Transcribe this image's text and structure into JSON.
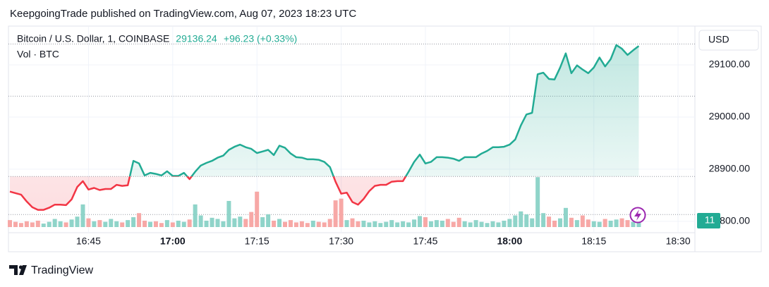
{
  "header": "KeepgoingTrade published on TradingView.com, Aug 07, 2023 18:23 UTC",
  "footer": "TradingView",
  "chart_data": {
    "type": "baseline",
    "symbol": "Bitcoin / U.S. Dollar, 1, COINBASE",
    "last_price": 29136.24,
    "change": "+96.23 (+0.33%)",
    "volume_label": "Vol · BTC",
    "currency": "USD",
    "x": [
      "16:31",
      "16:32",
      "16:33",
      "16:34",
      "16:35",
      "16:36",
      "16:37",
      "16:38",
      "16:39",
      "16:40",
      "16:41",
      "16:42",
      "16:43",
      "16:44",
      "16:45",
      "16:46",
      "16:47",
      "16:48",
      "16:49",
      "16:50",
      "16:51",
      "16:52",
      "16:53",
      "16:54",
      "16:55",
      "16:56",
      "16:57",
      "16:58",
      "16:59",
      "17:00",
      "17:01",
      "17:02",
      "17:03",
      "17:04",
      "17:05",
      "17:06",
      "17:07",
      "17:08",
      "17:09",
      "17:10",
      "17:11",
      "17:12",
      "17:13",
      "17:14",
      "17:15",
      "17:16",
      "17:17",
      "17:18",
      "17:19",
      "17:20",
      "17:21",
      "17:22",
      "17:23",
      "17:24",
      "17:25",
      "17:26",
      "17:27",
      "17:28",
      "17:29",
      "17:30",
      "17:31",
      "17:32",
      "17:33",
      "17:34",
      "17:35",
      "17:36",
      "17:37",
      "17:38",
      "17:39",
      "17:40",
      "17:41",
      "17:42",
      "17:43",
      "17:44",
      "17:45",
      "17:46",
      "17:47",
      "17:48",
      "17:49",
      "17:50",
      "17:51",
      "17:52",
      "17:53",
      "17:54",
      "17:55",
      "17:56",
      "17:57",
      "17:58",
      "17:59",
      "18:00",
      "18:01",
      "18:02",
      "18:03",
      "18:04",
      "18:05",
      "18:06",
      "18:07",
      "18:08",
      "18:09",
      "18:10",
      "18:11",
      "18:12",
      "18:13",
      "18:14",
      "18:15",
      "18:16",
      "18:17",
      "18:18",
      "18:19",
      "18:20",
      "18:21",
      "18:22",
      "18:23"
    ],
    "values": [
      28857,
      28854,
      28851,
      28838,
      28827,
      28822,
      28822,
      28826,
      28832,
      28832,
      28831,
      28842,
      28866,
      28877,
      28861,
      28864,
      28860,
      28862,
      28862,
      28870,
      28868,
      28869,
      28916,
      28911,
      28888,
      28893,
      28891,
      28888,
      28896,
      28887,
      28887,
      28893,
      28881,
      28895,
      28907,
      28912,
      28916,
      28922,
      28926,
      28937,
      28943,
      28947,
      28942,
      28939,
      28931,
      28934,
      28937,
      28927,
      28945,
      28941,
      28930,
      28923,
      28922,
      28919,
      28919,
      28918,
      28914,
      28904,
      28876,
      28853,
      28855,
      28837,
      28832,
      28843,
      28858,
      28868,
      28870,
      28870,
      28876,
      28877,
      28877,
      28895,
      28914,
      28928,
      28911,
      28914,
      28923,
      28923,
      28922,
      28920,
      28916,
      28923,
      28923,
      28923,
      28930,
      28935,
      28942,
      28942,
      28943,
      28947,
      28957,
      28984,
      29005,
      29008,
      29082,
      29085,
      29073,
      29072,
      29095,
      29122,
      29084,
      29099,
      29091,
      29084,
      29095,
      29114,
      29097,
      29111,
      29138,
      29131,
      29119,
      29128,
      29136.24
    ],
    "volume": [
      12,
      9,
      7,
      10,
      8,
      11,
      6,
      9,
      14,
      10,
      8,
      13,
      18,
      39,
      15,
      10,
      12,
      9,
      14,
      10,
      8,
      12,
      17,
      24,
      11,
      9,
      10,
      7,
      12,
      8,
      11,
      9,
      13,
      39,
      20,
      11,
      16,
      14,
      10,
      45,
      15,
      18,
      14,
      26,
      61,
      17,
      22,
      11,
      14,
      9,
      12,
      8,
      10,
      7,
      11,
      9,
      8,
      14,
      46,
      49,
      12,
      15,
      10,
      11,
      8,
      10,
      7,
      9,
      12,
      8,
      10,
      8,
      13,
      19,
      17,
      10,
      12,
      11,
      14,
      9,
      16,
      10,
      8,
      12,
      9,
      7,
      10,
      8,
      11,
      14,
      20,
      27,
      22,
      15,
      86,
      24,
      18,
      11,
      15,
      33,
      16,
      12,
      20,
      13,
      10,
      9,
      14,
      11,
      13,
      15,
      12,
      9,
      11
    ],
    "baseline": 28886,
    "reference_lines": [
      29140,
      29040,
      28813
    ],
    "colors": {
      "up": "#22ab94",
      "down": "#f23645",
      "up_volume": "#8fd4c9",
      "down_volume": "#f7a8a6"
    },
    "ylim": [
      28789,
      29173
    ],
    "yticks": [
      {
        "value": 28800,
        "label": "28800.00"
      },
      {
        "value": 28900,
        "label": "28900.00"
      },
      {
        "value": 29000,
        "label": "29000.00"
      },
      {
        "value": 29100,
        "label": "29100.00"
      }
    ],
    "volume_ylim": [
      0,
      345
    ],
    "xlim": [
      "16:31",
      "18:33"
    ],
    "xticks": [
      "16:45",
      "17:00",
      "17:15",
      "17:30",
      "17:45",
      "18:00",
      "18:15",
      "18:30"
    ],
    "grid": true
  }
}
